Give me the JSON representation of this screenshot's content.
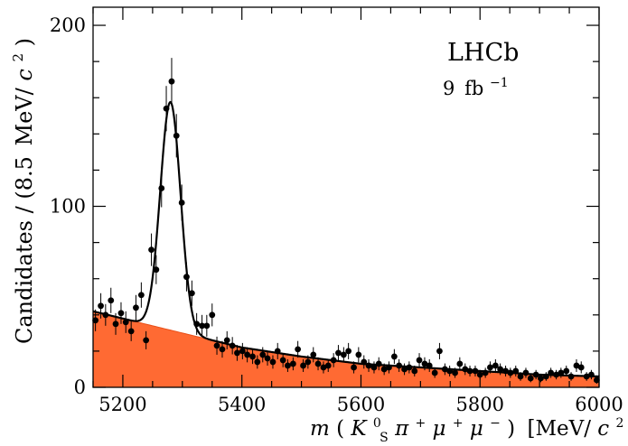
{
  "chart_data": {
    "type": "scatter",
    "experiment_label": "LHCb",
    "luminosity_label_value": "9",
    "luminosity_label_unit": "fb",
    "luminosity_label_exp": "−1",
    "ylabel_main": "Candidates / (8.5",
    "ylabel_unit": "MeV/",
    "ylabel_c": "c",
    "ylabel_exp": "2",
    "ylabel_close": ")",
    "xlabel_m": "m",
    "xlabel_open": "(",
    "xlabel_K": "K",
    "xlabel_K_sup": "0",
    "xlabel_K_sub": "S",
    "xlabel_pi": "π",
    "xlabel_pi_sup": "+",
    "xlabel_mu1": "μ",
    "xlabel_mu1_sup": "+",
    "xlabel_mu2": "μ",
    "xlabel_mu2_sup": "−",
    "xlabel_close": ")",
    "xlabel_unit": "[MeV/",
    "xlabel_c": "c",
    "xlabel_exp": "2",
    "xlabel_unit_close": "]",
    "xlim": [
      5150,
      6000
    ],
    "ylim": [
      0,
      210
    ],
    "x_ticks": [
      5200,
      5400,
      5600,
      5800,
      6000
    ],
    "x_tick_labels": [
      "5200",
      "5400",
      "5600",
      "5800",
      "6000"
    ],
    "y_ticks": [
      0,
      100,
      200
    ],
    "y_tick_labels": [
      "0",
      "100",
      "200"
    ],
    "colors": {
      "background_fill": "#ff6a33",
      "background_edge": "#e8501a",
      "fit": "#000000",
      "data": "#000000"
    },
    "series": [
      {
        "kind": "data",
        "x": [
          5154,
          5163,
          5171,
          5180,
          5188,
          5197,
          5205,
          5214,
          5222,
          5231,
          5239,
          5248,
          5256,
          5265,
          5273,
          5282,
          5290,
          5299,
          5307,
          5316,
          5324,
          5333,
          5341,
          5350,
          5358,
          5367,
          5375,
          5384,
          5392,
          5401,
          5409,
          5418,
          5426,
          5435,
          5443,
          5452,
          5460,
          5469,
          5477,
          5486,
          5494,
          5503,
          5511,
          5520,
          5528,
          5537,
          5545,
          5554,
          5562,
          5571,
          5579,
          5588,
          5596,
          5605,
          5613,
          5622,
          5630,
          5639,
          5647,
          5656,
          5664,
          5673,
          5681,
          5690,
          5698,
          5707,
          5715,
          5724,
          5732,
          5741,
          5749,
          5758,
          5766,
          5775,
          5783,
          5792,
          5800,
          5809,
          5817,
          5826,
          5834,
          5843,
          5851,
          5860,
          5868,
          5877,
          5885,
          5894,
          5902,
          5911,
          5919,
          5928,
          5936,
          5945,
          5953,
          5962,
          5970,
          5979,
          5987,
          5996
        ],
        "y": [
          37,
          45,
          40,
          48,
          35,
          41,
          36,
          31,
          44,
          51,
          26,
          76,
          65,
          110,
          154,
          169,
          139,
          102,
          61,
          52,
          35,
          34,
          34,
          40,
          23,
          21,
          26,
          23,
          19,
          20,
          18,
          17,
          14,
          18,
          16,
          14,
          20,
          15,
          12,
          13,
          21,
          12,
          14,
          18,
          13,
          11,
          12,
          15,
          19,
          18,
          20,
          11,
          18,
          14,
          12,
          11,
          13,
          10,
          11,
          17,
          12,
          10,
          11,
          9,
          15,
          13,
          12,
          8,
          20,
          10,
          9,
          8,
          13,
          10,
          9,
          9,
          7,
          8,
          11,
          12,
          10,
          9,
          8,
          9,
          6,
          8,
          5,
          7,
          5,
          6,
          8,
          7,
          8,
          9,
          6,
          12,
          11,
          6,
          7,
          4
        ],
        "yerr": [
          6,
          7,
          6,
          7,
          6,
          6,
          6,
          5.5,
          7,
          7,
          5,
          9,
          8,
          10.5,
          12.5,
          13,
          12,
          10,
          8,
          7,
          6,
          6,
          6,
          6.3,
          5,
          4.6,
          5,
          4.8,
          4.4,
          4.5,
          4.2,
          4.1,
          3.7,
          4.2,
          4,
          3.7,
          4.5,
          3.9,
          3.5,
          3.6,
          4.6,
          3.5,
          3.7,
          4.2,
          3.6,
          3.3,
          3.5,
          3.9,
          4.4,
          4.2,
          4.5,
          3.3,
          4.2,
          3.7,
          3.5,
          3.3,
          3.6,
          3.2,
          3.3,
          4.1,
          3.5,
          3.2,
          3.3,
          3,
          3.9,
          3.6,
          3.5,
          2.8,
          4.5,
          3.2,
          3,
          2.8,
          3.6,
          3.2,
          3,
          3,
          2.6,
          2.8,
          3.3,
          3.5,
          3.2,
          3,
          2.8,
          3,
          2.4,
          2.8,
          2.2,
          2.6,
          2.2,
          2.4,
          2.8,
          2.6,
          2.8,
          3,
          2.4,
          3.5,
          3.3,
          2.4,
          2.6,
          2
        ]
      },
      {
        "kind": "background",
        "x": [
          5150,
          5300,
          5400,
          5500,
          5600,
          5700,
          5800,
          5900,
          6000
        ],
        "y": [
          42,
          30,
          22,
          17,
          13,
          11,
          9,
          7,
          6
        ]
      },
      {
        "kind": "fit",
        "signal_mean": 5280,
        "signal_sigma": 17,
        "signal_peak": 126
      }
    ]
  }
}
